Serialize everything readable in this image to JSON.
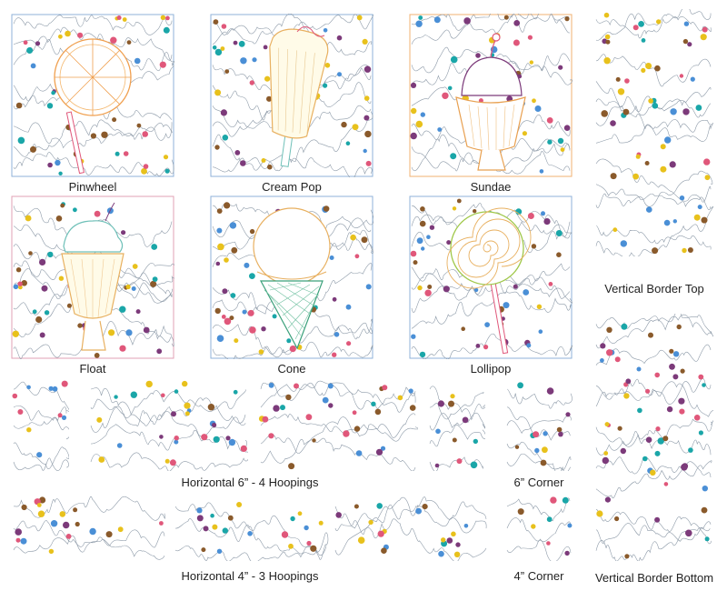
{
  "blocks": {
    "pinwheel": "Pinwheel",
    "cream_pop": "Cream Pop",
    "sundae": "Sundae",
    "float": "Float",
    "cone": "Cone",
    "lollipop": "Lollipop"
  },
  "borders": {
    "vertical_top": "Vertical Border Top",
    "vertical_bottom": "Vertical Border Bottom",
    "horizontal_6": "Horizontal 6” - 4 Hoopings",
    "horizontal_4": "Horizontal 4” - 3 Hoopings",
    "corner_6": "6” Corner",
    "corner_4": "4” Corner"
  },
  "palette": {
    "dots": [
      "#1aa6a8",
      "#e8c11c",
      "#7c3a7a",
      "#e0577a",
      "#8a5a2b",
      "#4a8fd6"
    ],
    "stipple": "#8d9aa8",
    "frame_blue": "#8fb2d8",
    "frame_pink": "#e2a0b4",
    "frame_orange": "#f0b070"
  }
}
